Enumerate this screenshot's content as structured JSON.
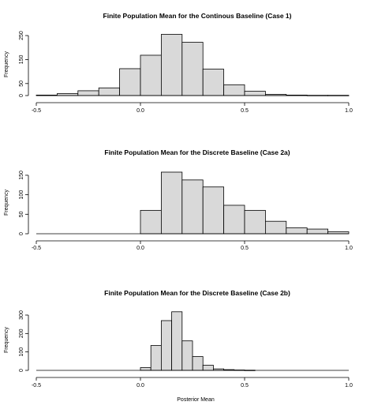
{
  "chart_data": [
    {
      "type": "bar",
      "title": "Finite Population Mean for the Continous   Baseline (Case 1)",
      "ylabel": "Frequency",
      "xlabel": "",
      "xlim": [
        -0.5,
        1.0
      ],
      "xticks": [
        "-0.5",
        "0.0",
        "0.5",
        "1.0"
      ],
      "yticks": [
        "0",
        "50",
        "150",
        "250"
      ],
      "ytick_values": [
        0,
        50,
        150,
        250
      ],
      "ylim": [
        0,
        260
      ],
      "bin_width": 0.1,
      "bin_starts": [
        -0.5,
        -0.4,
        -0.3,
        -0.2,
        -0.1,
        0.0,
        0.1,
        0.2,
        0.3,
        0.4,
        0.5,
        0.6,
        0.7,
        0.8,
        0.9
      ],
      "values": [
        2,
        8,
        20,
        32,
        112,
        168,
        255,
        222,
        110,
        45,
        18,
        5,
        2,
        1,
        1
      ]
    },
    {
      "type": "bar",
      "title": "Finite Population Mean for the Discrete Baseline (Case 2a)",
      "ylabel": "Frequency",
      "xlabel": "",
      "xlim": [
        -0.5,
        1.0
      ],
      "xticks": [
        "-0.5",
        "0.0",
        "0.5",
        "1.0"
      ],
      "yticks": [
        "0",
        "50",
        "100",
        "150"
      ],
      "ytick_values": [
        0,
        50,
        100,
        150
      ],
      "ylim": [
        0,
        160
      ],
      "bin_width": 0.1,
      "bin_starts": [
        0.0,
        0.1,
        0.2,
        0.3,
        0.4,
        0.5,
        0.6,
        0.7,
        0.8,
        0.9
      ],
      "values": [
        60,
        158,
        138,
        120,
        73,
        60,
        32,
        15,
        12,
        5
      ]
    },
    {
      "type": "bar",
      "title": "Finite Population Mean for the Discrete Baseline (Case 2b)",
      "ylabel": "Frequency",
      "xlabel": "Posterior Mean",
      "xlim": [
        -0.5,
        1.0
      ],
      "xticks": [
        "-0.5",
        "0.0",
        "0.5",
        "1.0"
      ],
      "yticks": [
        "0",
        "100",
        "200",
        "300"
      ],
      "ytick_values": [
        0,
        100,
        200,
        300
      ],
      "ylim": [
        0,
        330
      ],
      "bin_width": 0.05,
      "bin_starts": [
        0.0,
        0.05,
        0.1,
        0.15,
        0.2,
        0.25,
        0.3,
        0.35,
        0.4,
        0.45,
        0.5
      ],
      "values": [
        15,
        135,
        270,
        318,
        160,
        75,
        28,
        8,
        4,
        2,
        1
      ]
    }
  ]
}
